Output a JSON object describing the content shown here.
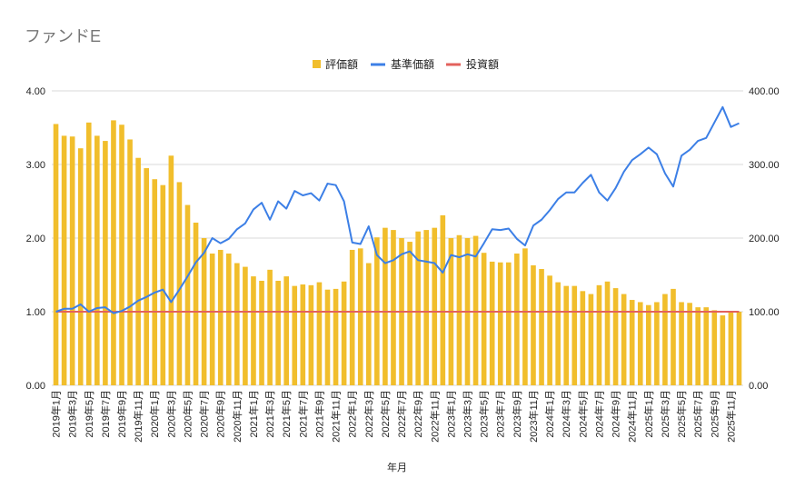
{
  "chart_data": {
    "type": "bar",
    "title": "ファンドE",
    "xlabel": "年月",
    "ylabel": "",
    "ylim": [
      0,
      4
    ],
    "y2lim": [
      0,
      400
    ],
    "yticks": [
      "0.00",
      "1.00",
      "2.00",
      "3.00",
      "4.00"
    ],
    "y2ticks": [
      "0.00",
      "100.00",
      "200.00",
      "300.00",
      "400.00"
    ],
    "legend_position": "top-center",
    "grid": true,
    "colors": {
      "bar": "#F1BE2C",
      "line": "#3C7FE6",
      "invest": "#E3625C",
      "grid": "#D9D9D9"
    },
    "categories": [
      "2019年1月",
      "2019年2月",
      "2019年3月",
      "2019年4月",
      "2019年5月",
      "2019年6月",
      "2019年7月",
      "2019年8月",
      "2019年9月",
      "2019年10月",
      "2019年11月",
      "2019年12月",
      "2020年1月",
      "2020年2月",
      "2020年3月",
      "2020年4月",
      "2020年5月",
      "2020年6月",
      "2020年7月",
      "2020年8月",
      "2020年9月",
      "2020年10月",
      "2020年11月",
      "2020年12月",
      "2021年1月",
      "2021年2月",
      "2021年3月",
      "2021年4月",
      "2021年5月",
      "2021年6月",
      "2021年7月",
      "2021年8月",
      "2021年9月",
      "2021年10月",
      "2021年11月",
      "2021年12月",
      "2022年1月",
      "2022年2月",
      "2022年3月",
      "2022年4月",
      "2022年5月",
      "2022年6月",
      "2022年7月",
      "2022年8月",
      "2022年9月",
      "2022年10月",
      "2022年11月",
      "2022年12月",
      "2023年1月",
      "2023年2月",
      "2023年3月",
      "2023年4月",
      "2023年5月",
      "2023年6月",
      "2023年7月",
      "2023年8月",
      "2023年9月",
      "2023年10月",
      "2023年11月",
      "2023年12月",
      "2024年1月",
      "2024年2月",
      "2024年3月",
      "2024年4月",
      "2024年5月",
      "2024年6月",
      "2024年7月",
      "2024年8月",
      "2024年9月",
      "2024年10月",
      "2024年11月",
      "2024年12月",
      "2025年1月",
      "2025年2月",
      "2025年3月",
      "2025年4月",
      "2025年5月",
      "2025年6月",
      "2025年7月",
      "2025年8月",
      "2025年9月",
      "2025年10月",
      "2025年11月",
      "2025年12月"
    ],
    "xtick_labels": [
      "2019年1月",
      "2019年3月",
      "2019年5月",
      "2019年7月",
      "2019年9月",
      "2019年11月",
      "2020年1月",
      "2020年3月",
      "2020年5月",
      "2020年7月",
      "2020年9月",
      "2020年11月",
      "2021年1月",
      "2021年3月",
      "2021年5月",
      "2021年7月",
      "2021年9月",
      "2021年11月",
      "2022年1月",
      "2022年3月",
      "2022年5月",
      "2022年7月",
      "2022年9月",
      "2022年11月",
      "2023年1月",
      "2023年3月",
      "2023年5月",
      "2023年7月",
      "2023年9月",
      "2023年11月",
      "2024年1月",
      "2024年3月",
      "2024年5月",
      "2024年7月",
      "2024年9月",
      "2024年11月",
      "2025年1月",
      "2025年3月",
      "2025年5月",
      "2025年7月",
      "2025年9月",
      "2025年11月"
    ],
    "series": [
      {
        "name": "評価額",
        "type": "bar",
        "axis": "left",
        "values": [
          3.55,
          3.39,
          3.38,
          3.22,
          3.57,
          3.39,
          3.32,
          3.6,
          3.54,
          3.34,
          3.09,
          2.95,
          2.8,
          2.72,
          3.12,
          2.76,
          2.45,
          2.21,
          2.0,
          1.79,
          1.84,
          1.79,
          1.66,
          1.61,
          1.48,
          1.42,
          1.57,
          1.42,
          1.48,
          1.35,
          1.37,
          1.36,
          1.4,
          1.3,
          1.31,
          1.41,
          1.84,
          1.86,
          1.66,
          2.01,
          2.14,
          2.11,
          2.0,
          1.95,
          2.09,
          2.11,
          2.14,
          2.31,
          2.0,
          2.04,
          2.0,
          2.03,
          1.8,
          1.68,
          1.67,
          1.67,
          1.79,
          1.86,
          1.63,
          1.58,
          1.49,
          1.4,
          1.35,
          1.35,
          1.28,
          1.24,
          1.36,
          1.41,
          1.32,
          1.24,
          1.16,
          1.13,
          1.09,
          1.13,
          1.24,
          1.31,
          1.13,
          1.12,
          1.06,
          1.06,
          1.02,
          0.95,
          1.01,
          1.0
        ]
      },
      {
        "name": "基準価額",
        "type": "line",
        "axis": "right",
        "values": [
          100,
          104,
          104,
          110,
          100,
          105,
          106,
          98,
          101,
          107,
          115,
          120,
          126,
          130,
          113,
          130,
          148,
          167,
          180,
          200,
          193,
          199,
          212,
          220,
          239,
          248,
          225,
          250,
          240,
          264,
          258,
          261,
          251,
          274,
          272,
          250,
          194,
          192,
          216,
          177,
          166,
          170,
          178,
          182,
          170,
          168,
          166,
          153,
          177,
          174,
          178,
          175,
          193,
          212,
          211,
          213,
          199,
          190,
          217,
          225,
          238,
          253,
          262,
          262,
          275,
          286,
          262,
          251,
          268,
          290,
          306,
          314,
          323,
          314,
          288,
          270,
          312,
          320,
          332,
          336,
          357,
          378,
          351,
          356
        ]
      },
      {
        "name": "投資額",
        "type": "line",
        "axis": "right",
        "values": [
          100,
          100,
          100,
          100,
          100,
          100,
          100,
          100,
          100,
          100,
          100,
          100,
          100,
          100,
          100,
          100,
          100,
          100,
          100,
          100,
          100,
          100,
          100,
          100,
          100,
          100,
          100,
          100,
          100,
          100,
          100,
          100,
          100,
          100,
          100,
          100,
          100,
          100,
          100,
          100,
          100,
          100,
          100,
          100,
          100,
          100,
          100,
          100,
          100,
          100,
          100,
          100,
          100,
          100,
          100,
          100,
          100,
          100,
          100,
          100,
          100,
          100,
          100,
          100,
          100,
          100,
          100,
          100,
          100,
          100,
          100,
          100,
          100,
          100,
          100,
          100,
          100,
          100,
          100,
          100,
          100,
          100,
          100,
          100
        ]
      }
    ]
  }
}
